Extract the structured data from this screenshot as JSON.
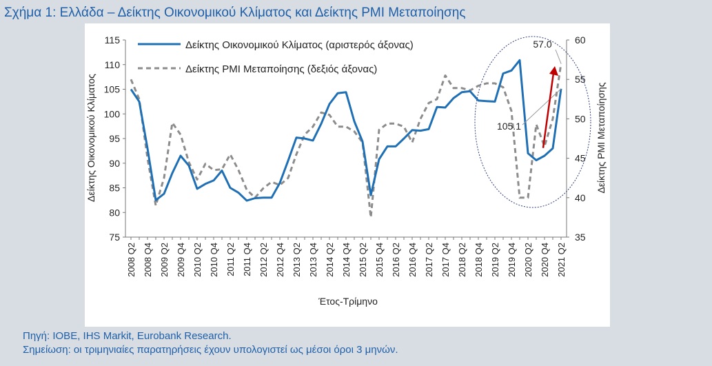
{
  "figure": {
    "title": "Σχήμα 1: Ελλάδα – Δείκτης Οικονομικού Κλίματος και Δείκτης PMI Μεταποίησης",
    "source": "Πηγή: IOBE, IHS Markit, Eurobank Research.",
    "note": "Σημείωση: οι τριμηνιαίες παρατηρήσεις έχουν υπολογιστεί ως μέσοι όροι 3 μηνών."
  },
  "colors": {
    "esi": "#1f6fb5",
    "pmi": "#8c8c8c",
    "arrow": "#c00000",
    "ellipse": "#2b3a7a",
    "title": "#1f5fa8"
  },
  "chart_data": {
    "type": "line",
    "title": "",
    "xlabel": "Έτος-Τρίμηνο",
    "ylabel_left": "Δείκτης Οικονομικού Κλίματος",
    "ylabel_right": "Δείκτης PMI Μεταποίησης",
    "ylim_left": [
      75,
      115
    ],
    "yticks_left": [
      75,
      80,
      85,
      90,
      95,
      100,
      105,
      110,
      115
    ],
    "ylim_right": [
      35,
      60
    ],
    "yticks_right": [
      35,
      40,
      45,
      50,
      55,
      60
    ],
    "legend_position": "top-left",
    "tick_labels": [
      "2008 Q2",
      "2008 Q4",
      "2009 Q2",
      "2009 Q4",
      "2010 Q2",
      "2010 Q4",
      "2011 Q2",
      "2011 Q4",
      "2012 Q2",
      "2012 Q4",
      "2013 Q2",
      "2013 Q4",
      "2014 Q2",
      "2014 Q4",
      "2015 Q2",
      "2015 Q4",
      "2016 Q2",
      "2016 Q4",
      "2017 Q2",
      "2017 Q4",
      "2018 Q2",
      "2018 Q4",
      "2019 Q2",
      "2019 Q4",
      "2020 Q2",
      "2020 Q4",
      "2021 Q2"
    ],
    "x": [
      "2008 Q2",
      "2008 Q3",
      "2008 Q4",
      "2009 Q1",
      "2009 Q2",
      "2009 Q3",
      "2009 Q4",
      "2010 Q1",
      "2010 Q2",
      "2010 Q3",
      "2010 Q4",
      "2011 Q1",
      "2011 Q2",
      "2011 Q3",
      "2011 Q4",
      "2012 Q1",
      "2012 Q2",
      "2012 Q3",
      "2012 Q4",
      "2013 Q1",
      "2013 Q2",
      "2013 Q3",
      "2013 Q4",
      "2014 Q1",
      "2014 Q2",
      "2014 Q3",
      "2014 Q4",
      "2015 Q1",
      "2015 Q2",
      "2015 Q3",
      "2015 Q4",
      "2016 Q1",
      "2016 Q2",
      "2016 Q3",
      "2016 Q4",
      "2017 Q1",
      "2017 Q2",
      "2017 Q3",
      "2017 Q4",
      "2018 Q1",
      "2018 Q2",
      "2018 Q3",
      "2018 Q4",
      "2019 Q1",
      "2019 Q2",
      "2019 Q3",
      "2019 Q4",
      "2020 Q1",
      "2020 Q2",
      "2020 Q3",
      "2020 Q4",
      "2021 Q1",
      "2021 Q2"
    ],
    "series": [
      {
        "name": "Δείκτης Οικονομικού Κλίματος (αριστερός άξονας)",
        "axis": "left",
        "style": "solid",
        "values": [
          105,
          102.5,
          93,
          82.5,
          83.8,
          88,
          91.5,
          89.5,
          84.8,
          85.8,
          86.5,
          88.5,
          85,
          84,
          82.4,
          82.9,
          83,
          83,
          86,
          90.5,
          95.2,
          95,
          94.6,
          98,
          102,
          104.2,
          104.4,
          98.5,
          94.4,
          83.5,
          90.8,
          93.4,
          93.4,
          95,
          96.7,
          96.6,
          96.9,
          101.4,
          101.3,
          103.2,
          104.4,
          104.6,
          102.7,
          102.6,
          102.5,
          108.2,
          108.8,
          110.9,
          92,
          90.6,
          91.5,
          93,
          105.1
        ]
      },
      {
        "name": "Δείκτης PMI Μεταποίησης (δεξιός άξονας)",
        "axis": "right",
        "style": "dashed",
        "values": [
          55,
          52.5,
          45,
          39,
          42.5,
          49.5,
          48,
          44.5,
          42.3,
          44.3,
          43.5,
          43.6,
          45.5,
          43.5,
          41,
          40,
          41.2,
          42,
          41.6,
          42.5,
          45.5,
          48,
          49,
          50.8,
          50.5,
          49,
          49,
          48.4,
          47,
          37.5,
          48.6,
          49.4,
          49.4,
          49,
          47,
          50,
          52,
          52.5,
          55.5,
          53.9,
          53.9,
          53.6,
          54.2,
          54.5,
          54.5,
          54,
          51,
          40,
          40,
          49.3,
          46.5,
          50,
          57
        ]
      }
    ],
    "annotations": {
      "esi_last_value": "105.1",
      "pmi_last_value": "57.0"
    }
  }
}
